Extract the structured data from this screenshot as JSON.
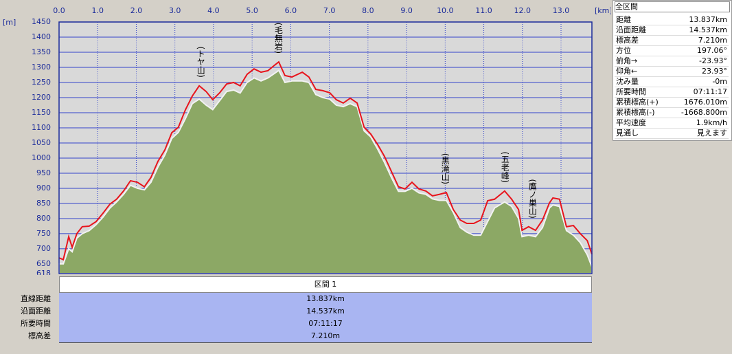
{
  "chart_data": {
    "type": "line",
    "x_unit_label": "[km]",
    "y_unit_label": "[m]",
    "xlim": [
      0,
      13.8
    ],
    "ylim": [
      618,
      1450
    ],
    "xticks": [
      {
        "value": 0,
        "label": "0.0"
      },
      {
        "value": 1,
        "label": "1.0"
      },
      {
        "value": 2,
        "label": "2.0"
      },
      {
        "value": 3,
        "label": "3.0"
      },
      {
        "value": 4,
        "label": "4.0"
      },
      {
        "value": 5,
        "label": "5.0"
      },
      {
        "value": 6,
        "label": "6.0"
      },
      {
        "value": 7,
        "label": "7.0"
      },
      {
        "value": 8,
        "label": "8.0"
      },
      {
        "value": 9,
        "label": "9.0"
      },
      {
        "value": 10,
        "label": "10.0"
      },
      {
        "value": 11,
        "label": "11.0"
      },
      {
        "value": 12,
        "label": "12.0"
      },
      {
        "value": 13,
        "label": "13.0"
      }
    ],
    "yticks": [
      618,
      650,
      700,
      750,
      800,
      850,
      900,
      950,
      1000,
      1050,
      1100,
      1150,
      1200,
      1250,
      1300,
      1350,
      1400,
      1450
    ],
    "grid": true,
    "x": [
      0,
      0.11,
      0.25,
      0.34,
      0.46,
      0.6,
      0.78,
      0.96,
      1.14,
      1.32,
      1.49,
      1.67,
      1.85,
      2.03,
      2.21,
      2.38,
      2.56,
      2.74,
      2.92,
      3.09,
      3.27,
      3.45,
      3.63,
      3.81,
      3.98,
      4.16,
      4.34,
      4.52,
      4.69,
      4.87,
      5.05,
      5.23,
      5.41,
      5.58,
      5.69,
      5.85,
      6.03,
      6.3,
      6.47,
      6.65,
      6.83,
      7.01,
      7.18,
      7.36,
      7.54,
      7.72,
      7.9,
      8.07,
      8.25,
      8.43,
      8.61,
      8.79,
      8.96,
      9.14,
      9.32,
      9.5,
      9.67,
      9.85,
      10.03,
      10.21,
      10.39,
      10.56,
      10.74,
      10.92,
      11.1,
      11.28,
      11.54,
      11.72,
      11.9,
      11.99,
      12.16,
      12.34,
      12.52,
      12.7,
      12.79,
      12.96,
      13.14,
      13.32,
      13.5,
      13.68,
      13.8
    ],
    "series": [
      {
        "style": "area",
        "color": "#8ca865",
        "values": [
          650,
          650,
          700,
          690,
          735,
          750,
          760,
          780,
          805,
          835,
          855,
          880,
          910,
          900,
          895,
          920,
          970,
          1010,
          1065,
          1085,
          1130,
          1180,
          1195,
          1175,
          1160,
          1190,
          1220,
          1225,
          1215,
          1250,
          1265,
          1255,
          1265,
          1280,
          1290,
          1250,
          1255,
          1255,
          1250,
          1210,
          1200,
          1195,
          1175,
          1170,
          1180,
          1170,
          1090,
          1070,
          1030,
          985,
          935,
          890,
          890,
          900,
          885,
          880,
          865,
          860,
          860,
          820,
          770,
          755,
          745,
          745,
          790,
          835,
          855,
          840,
          800,
          740,
          745,
          740,
          770,
          835,
          845,
          840,
          760,
          745,
          720,
          680,
          640
        ]
      },
      {
        "style": "line",
        "color": "#e8141c",
        "values": [
          670,
          664,
          740,
          705,
          750,
          773,
          775,
          790,
          818,
          848,
          864,
          891,
          925,
          920,
          905,
          936,
          989,
          1027,
          1084,
          1102,
          1159,
          1205,
          1239,
          1220,
          1193,
          1216,
          1245,
          1250,
          1239,
          1277,
          1295,
          1284,
          1289,
          1307,
          1318,
          1273,
          1268,
          1284,
          1268,
          1227,
          1223,
          1216,
          1193,
          1182,
          1198,
          1182,
          1102,
          1080,
          1045,
          1005,
          955,
          905,
          898,
          920,
          898,
          891,
          875,
          880,
          886,
          830,
          795,
          784,
          784,
          795,
          859,
          864,
          891,
          864,
          830,
          761,
          773,
          761,
          795,
          852,
          868,
          864,
          773,
          777,
          750,
          727,
          682
        ]
      }
    ],
    "annotations": [
      {
        "text": "(トヤ山)",
        "x": 3.66
      },
      {
        "text": "(毛無岩)",
        "x": 5.67
      },
      {
        "text": "(黒滝山)",
        "x": 9.99
      },
      {
        "text": "(五老峰)",
        "x": 11.54
      },
      {
        "text": "(鷹ノ巣山)",
        "x": 12.25
      }
    ]
  },
  "section_table": {
    "header": "区間 1",
    "rows": [
      [
        "直線距離",
        "13.837km"
      ],
      [
        "沿面距離",
        "14.537km"
      ],
      [
        "所要時間",
        "07:11:17"
      ],
      [
        "標高差",
        "7.210m"
      ]
    ]
  },
  "summary_panel": {
    "title": "全区間",
    "rows": [
      [
        "距離",
        "13.837km"
      ],
      [
        "沿面距離",
        "14.537km"
      ],
      [
        "標高差",
        "7.210m"
      ],
      [
        "方位",
        "197.06°"
      ],
      [
        "俯角→",
        "-23.93°"
      ],
      [
        "仰角←",
        "23.93°"
      ],
      [
        "沈み量",
        "-0m"
      ],
      [
        "所要時間",
        "07:11:17"
      ],
      [
        "累積標高(+)",
        "1676.010m"
      ],
      [
        "累積標高(-)",
        "-1668.800m"
      ],
      [
        "平均速度",
        "1.9km/h"
      ],
      [
        "見通し",
        "見えます"
      ]
    ]
  }
}
